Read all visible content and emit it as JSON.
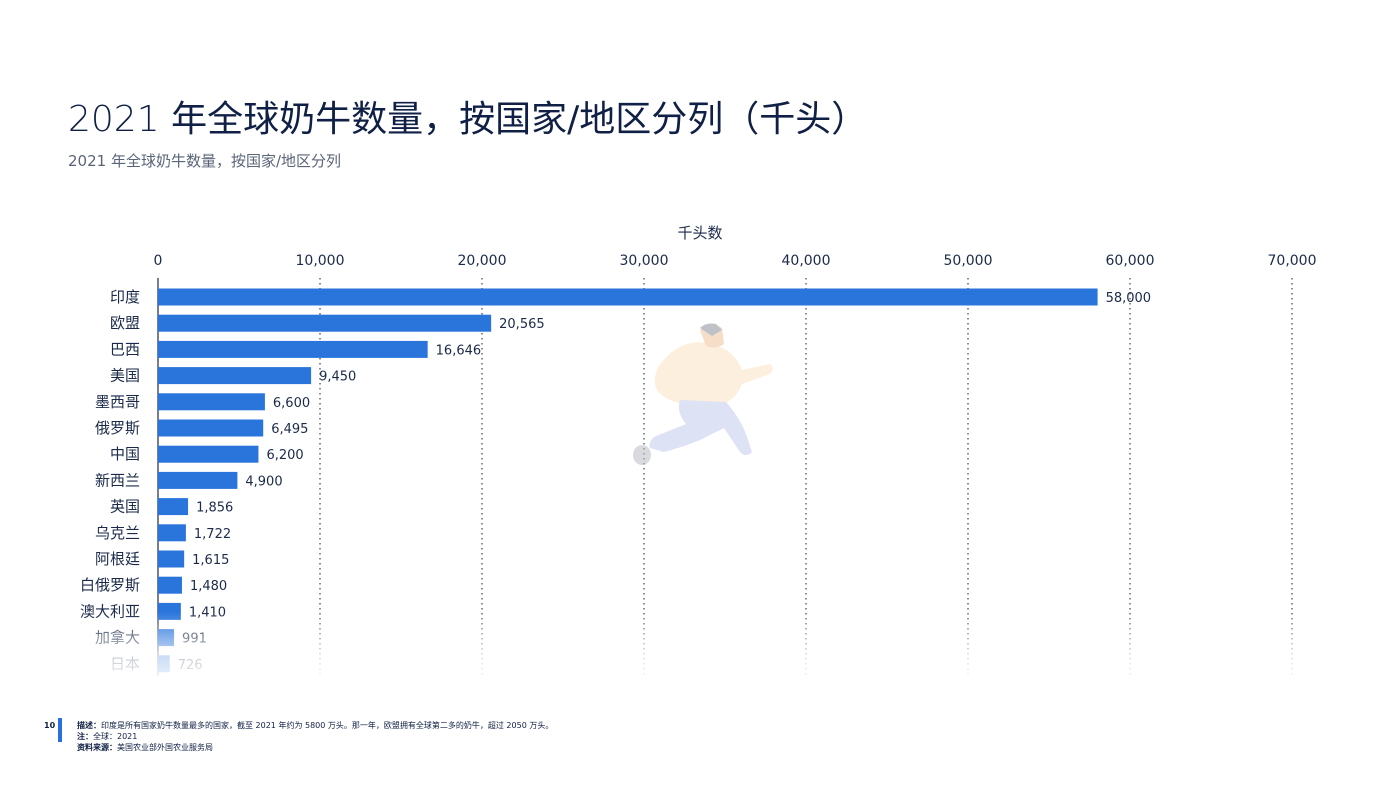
{
  "header": {
    "title_year": "2021",
    "title_rest": " 年全球奶牛数量，按国家/地区分列（千头）",
    "subtitle": "2021 年全球奶牛数量，按国家/地区分列"
  },
  "chart_data": {
    "type": "bar",
    "orientation": "horizontal",
    "xlabel": "千头数",
    "xlim": [
      0,
      70000
    ],
    "ticks": [
      0,
      10000,
      20000,
      30000,
      40000,
      50000,
      60000,
      70000
    ],
    "tick_labels": [
      "0",
      "10,000",
      "20,000",
      "30,000",
      "40,000",
      "50,000",
      "60,000",
      "70,000"
    ],
    "axis_position": "top",
    "grid": "vertical-dotted",
    "bar_color": "#2a75dc",
    "categories": [
      "印度",
      "欧盟",
      "巴西",
      "美国",
      "墨西哥",
      "俄罗斯",
      "中国",
      "新西兰",
      "英国",
      "乌克兰",
      "阿根廷",
      "白俄罗斯",
      "澳大利亚",
      "加拿大",
      "日本"
    ],
    "values": [
      58000,
      20565,
      16646,
      9450,
      6600,
      6495,
      6200,
      4900,
      1856,
      1722,
      1615,
      1480,
      1410,
      991,
      726
    ],
    "value_labels": [
      "58,000",
      "20,565",
      "16,646",
      "9,450",
      "6,600",
      "6,495",
      "6,200",
      "4,900",
      "1,856",
      "1,722",
      "1,615",
      "1,480",
      "1,410",
      "991",
      "726"
    ]
  },
  "footer": {
    "page_number": "10",
    "description_label": "描述：",
    "description": "印度是所有国家奶牛数量最多的国家，截至 2021 年约为 5800 万头。那一年，欧盟拥有全球第二多的奶牛，超过 2050 万头。",
    "note_label": "注：",
    "note": "全球：2021",
    "source_label": "资料来源：",
    "source": "美国农业部外国农业服务局"
  },
  "colors": {
    "accent": "#2a6fdb",
    "title": "#0f1f45",
    "subtitle": "#5a6478"
  },
  "decoration": {
    "illustration": "running-person-illustration"
  }
}
